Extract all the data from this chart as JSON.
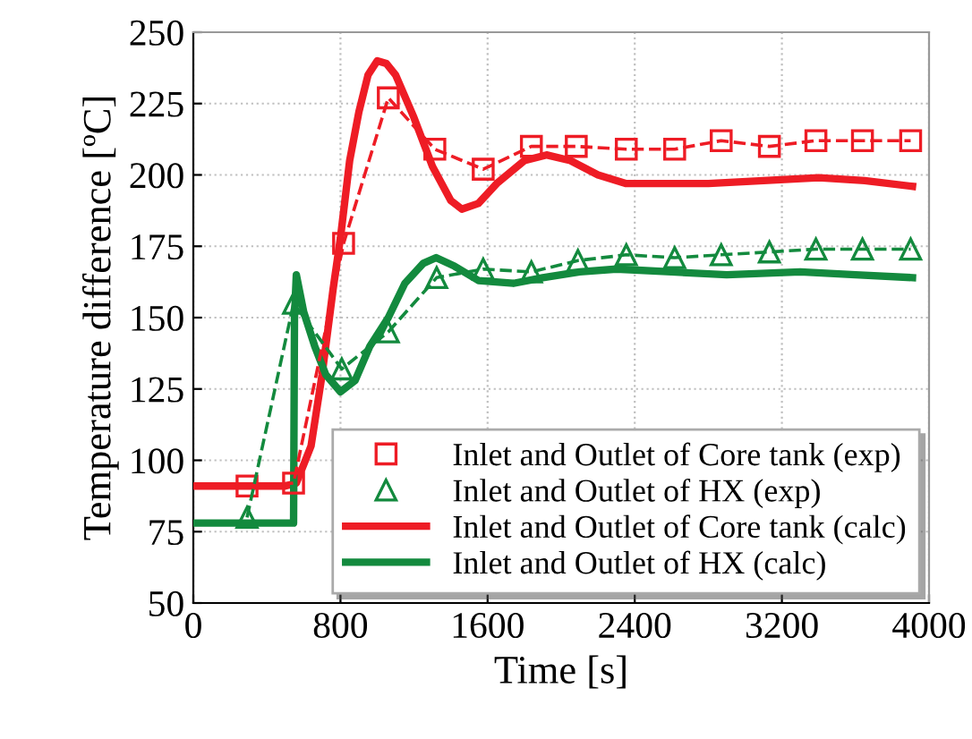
{
  "chart_data": {
    "type": "line",
    "xlabel": "Time [s]",
    "ylabel": "Temperature difference [ºC]",
    "xlim": [
      0,
      4000
    ],
    "xticks": [
      0,
      800,
      1600,
      2400,
      3200,
      4000
    ],
    "ylim": [
      50,
      250
    ],
    "yticks": [
      50,
      75,
      100,
      125,
      150,
      175,
      200,
      225,
      250
    ],
    "grid": true,
    "legend": "bottom right",
    "series": [
      {
        "name": "Inlet and Outlet of Core tank (exp)",
        "color": "#ee1c25",
        "marker": "square",
        "line_style": "dashed",
        "x": [
          292,
          545,
          817,
          1060,
          1313,
          1576,
          1838,
          2082,
          2354,
          2617,
          2870,
          3132,
          3385,
          3638,
          3900
        ],
        "values": [
          91,
          92,
          176,
          227,
          209,
          202,
          210,
          210,
          209,
          209,
          212,
          210,
          212,
          212,
          212
        ]
      },
      {
        "name": "Inlet and Outlet of HX (exp)",
        "color": "#138a3e",
        "marker": "triangle",
        "line_style": "dashed",
        "x": [
          292,
          545,
          807,
          1060,
          1323,
          1576,
          1838,
          2091,
          2354,
          2617,
          2870,
          3132,
          3385,
          3638,
          3900
        ],
        "values": [
          80,
          155,
          132,
          145,
          164,
          167,
          166,
          170,
          172,
          171,
          172,
          173,
          174,
          174,
          174
        ]
      },
      {
        "name": "Inlet and Outlet of Core tank (calc)",
        "color": "#ee1c25",
        "marker": "none",
        "line_style": "solid",
        "x": [
          0,
          500,
          560,
          640,
          700,
          760,
          800,
          850,
          900,
          950,
          1000,
          1050,
          1100,
          1200,
          1300,
          1400,
          1460,
          1550,
          1650,
          1800,
          1920,
          2050,
          2200,
          2350,
          2800,
          3100,
          3400,
          3650,
          3910
        ],
        "values": [
          91,
          91,
          92,
          105,
          130,
          160,
          178,
          205,
          222,
          235,
          240,
          239,
          235,
          220,
          203,
          191,
          188,
          190,
          197,
          205,
          207,
          205,
          200,
          197,
          197,
          198,
          199,
          198,
          196
        ]
      },
      {
        "name": "Inlet and Outlet of HX (calc)",
        "color": "#138a3e",
        "marker": "none",
        "line_style": "solid",
        "x": [
          0,
          545,
          550,
          560,
          600,
          660,
          720,
          800,
          880,
          960,
          1060,
          1150,
          1250,
          1320,
          1420,
          1550,
          1740,
          1900,
          2100,
          2300,
          2600,
          2900,
          3300,
          3600,
          3910
        ],
        "values": [
          78,
          78,
          150,
          165,
          152,
          140,
          130,
          124,
          128,
          140,
          150,
          162,
          169,
          171,
          168,
          163,
          162,
          164,
          166,
          167,
          166,
          165,
          166,
          165,
          164
        ]
      }
    ]
  }
}
